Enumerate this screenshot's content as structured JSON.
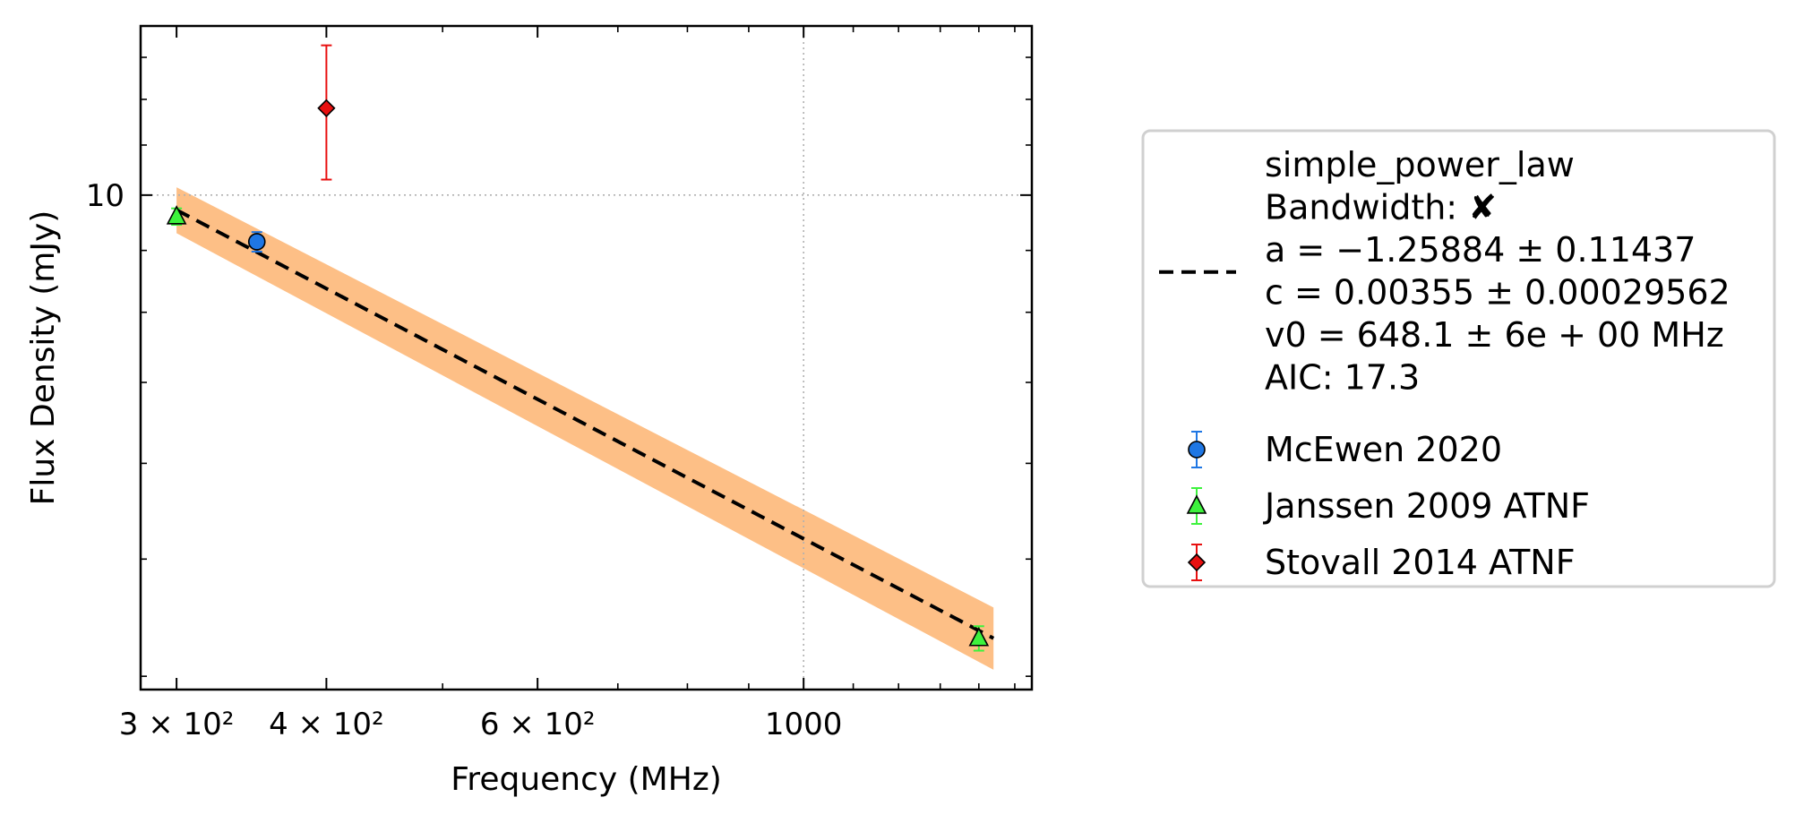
{
  "chart_data": {
    "type": "scatter",
    "title": "",
    "xlabel": "Frequency (MHz)",
    "ylabel": "Flux Density (mJy)",
    "x_scale": "log",
    "y_scale": "log",
    "xlim": [
      280,
      1550
    ],
    "ylim": [
      3.9,
      13.8
    ],
    "x_tick_labels": [
      {
        "value": 300,
        "label": "3 × 10²"
      },
      {
        "value": 400,
        "label": "4 × 10²"
      },
      {
        "value": 600,
        "label": "6 × 10²"
      },
      {
        "value": 1000,
        "label": "1000"
      }
    ],
    "y_tick_labels": [
      {
        "value": 10,
        "label": "10"
      }
    ],
    "grid": "dotted, major ticks only",
    "legend_position": "outside right",
    "fit": {
      "name": "simple_power_law",
      "color": "#000000",
      "band_color": "#fdbf86",
      "x": [
        300,
        1440
      ],
      "y": [
        9.72,
        4.3
      ],
      "band_upper": [
        10.15,
        4.56
      ],
      "band_lower": [
        9.3,
        4.05
      ],
      "legend_lines": [
        "simple_power_law",
        "Bandwidth: ✘",
        "a = −1.25884 ± 0.11437",
        "c = 0.00355 ± 0.00029562",
        "v0 = 648.1 ± 6e + 00 MHz",
        "AIC: 17.3"
      ]
    },
    "series": [
      {
        "name": "McEwen 2020",
        "marker": "circle",
        "color": "#1f77e4",
        "points": [
          {
            "x": 350,
            "y": 9.15,
            "yerr": 0.17
          }
        ]
      },
      {
        "name": "Janssen 2009 ATNF",
        "marker": "triangle",
        "color": "#3df23d",
        "points": [
          {
            "x": 300,
            "y": 9.6,
            "yerr": 0.15
          },
          {
            "x": 1400,
            "y": 4.3,
            "yerr": 0.1
          }
        ]
      },
      {
        "name": "Stovall 2014 ATNF",
        "marker": "diamond",
        "color": "#e81010",
        "points": [
          {
            "x": 400,
            "y": 11.8,
            "yerr": 1.5
          }
        ]
      }
    ]
  }
}
